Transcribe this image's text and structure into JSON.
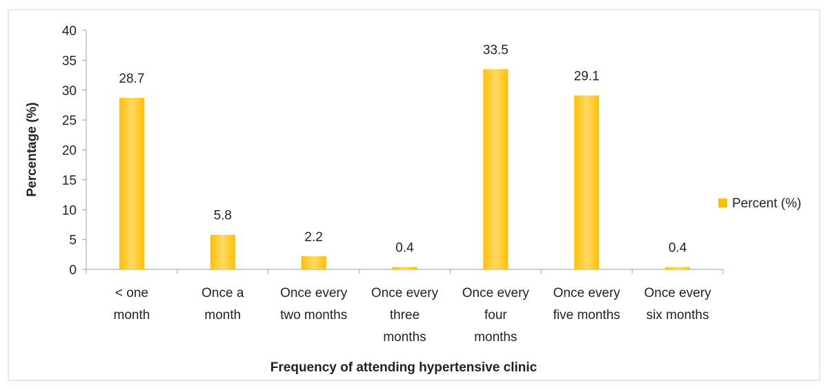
{
  "chart_data": {
    "type": "bar",
    "categories": [
      [
        "< one",
        "month"
      ],
      [
        "Once a",
        "month"
      ],
      [
        "Once every",
        "two months"
      ],
      [
        "Once every",
        "three",
        "months"
      ],
      [
        "Once every",
        "four",
        "months"
      ],
      [
        "Once every",
        "five months"
      ],
      [
        "Once every",
        "six months"
      ]
    ],
    "series": [
      {
        "name": "Percent (%)",
        "values": [
          28.7,
          5.8,
          2.2,
          0.4,
          33.5,
          29.1,
          0.4
        ]
      }
    ],
    "xlabel": "Frequency of attending hypertensive clinic",
    "ylabel": "Percentage (%)",
    "ylim": [
      0,
      40
    ],
    "yticks": [
      0,
      5,
      10,
      15,
      20,
      25,
      30,
      35,
      40
    ],
    "grid": false,
    "legend_position": "right",
    "bar_color": "#FFC000",
    "bar_highlight": "#FFD966"
  }
}
